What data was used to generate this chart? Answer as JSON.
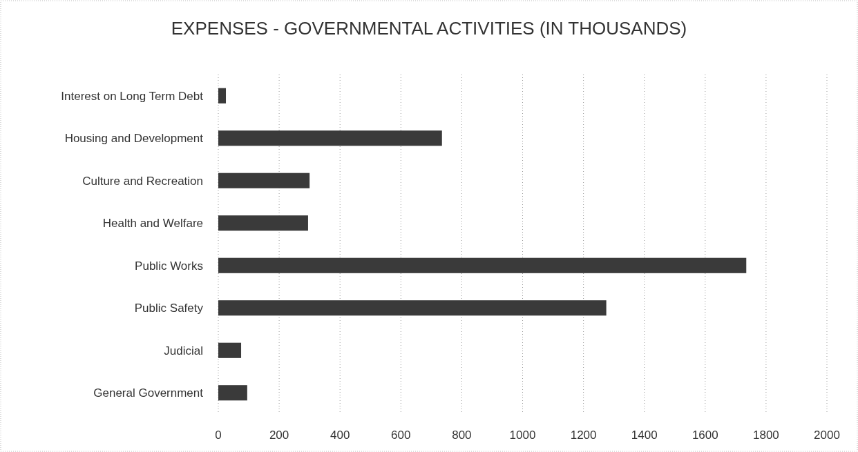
{
  "chart_data": {
    "type": "bar",
    "orientation": "horizontal",
    "title": "EXPENSES - GOVERNMENTAL ACTIVITIES (IN THOUSANDS)",
    "categories": [
      "Interest on Long Term Debt",
      "Housing and Development",
      "Culture and Recreation",
      "Health and Welfare",
      "Public Works",
      "Public Safety",
      "Judicial",
      "General Government"
    ],
    "values": [
      25,
      735,
      300,
      295,
      1735,
      1275,
      75,
      95
    ],
    "color": "#3a3a3a",
    "xlim": [
      0,
      2000
    ],
    "xticks": [
      0,
      200,
      400,
      600,
      800,
      1000,
      1200,
      1400,
      1600,
      1800,
      2000
    ],
    "grid": "x"
  }
}
